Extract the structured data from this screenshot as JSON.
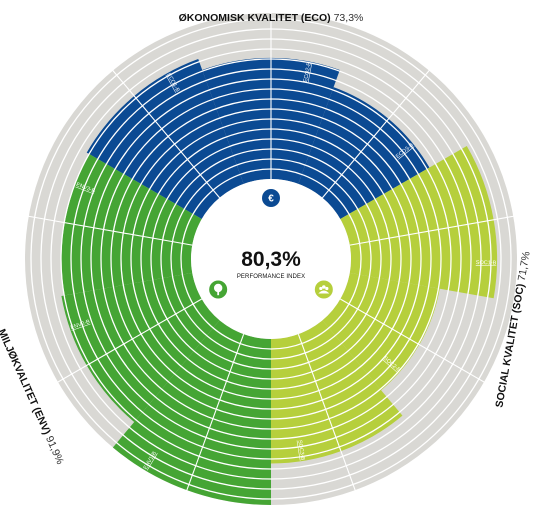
{
  "chart_data": {
    "type": "radial-bar",
    "center": {
      "value": "80,3%",
      "label": "PERFORMANCE INDEX"
    },
    "colors": {
      "ECO": "#0b4a93",
      "SOC": "#b6cf3c",
      "ENV": "#45a534",
      "track": "#d9d8d4",
      "divider": "#ffffff"
    },
    "sections": [
      {
        "key": "ECO",
        "title": "ØKONOMISK KVALITET (ECO)",
        "percent": "73,3%",
        "icon": "euro-icon",
        "symbol": "€",
        "subsections": [
          {
            "label": "ECO1-B",
            "value": 80
          },
          {
            "label": "ECO2-B",
            "value": 73
          },
          {
            "label": "ECO3-B",
            "value": 62
          }
        ]
      },
      {
        "key": "SOC",
        "title": "SOCIAL KVALITET (SOC)",
        "percent": "71,7%",
        "icon": "people-icon",
        "symbol": "",
        "subsections": [
          {
            "label": "SOC1-B",
            "value": 88
          },
          {
            "label": "SOC2-B",
            "value": 55
          },
          {
            "label": "SOC3-B",
            "value": 75
          }
        ]
      },
      {
        "key": "ENV",
        "title": "MILJØKVALITET (ENV)",
        "percent": "91,9%",
        "icon": "tree-icon",
        "symbol": "",
        "subsections": [
          {
            "label": "ENV1-B",
            "value": 100
          },
          {
            "label": "ENV2-B",
            "value": 80
          },
          {
            "label": "ENV3-B",
            "value": 78
          }
        ]
      }
    ]
  }
}
